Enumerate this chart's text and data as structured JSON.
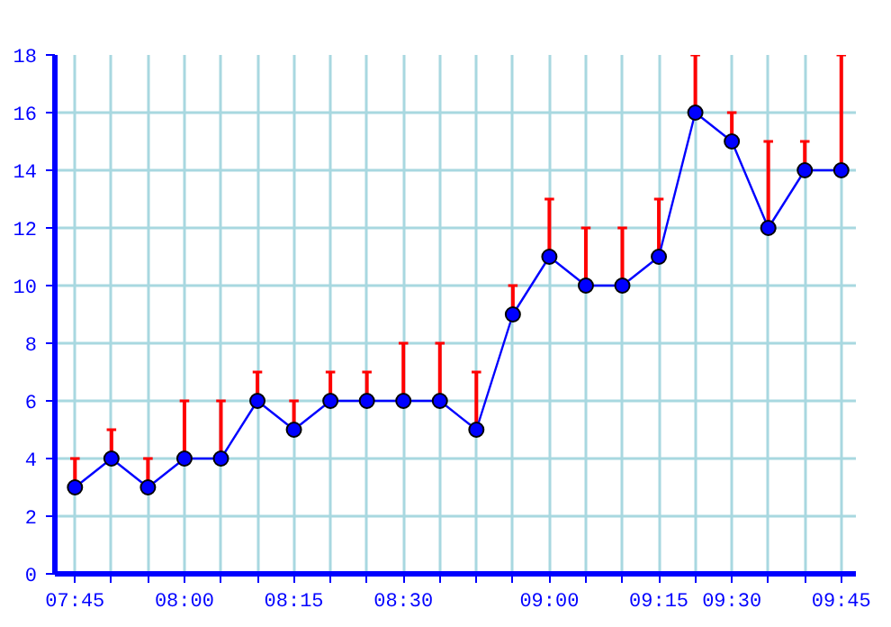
{
  "chart_data": {
    "type": "line",
    "categories": [
      "07:45",
      null,
      null,
      "08:00",
      null,
      null,
      "08:15",
      null,
      null,
      "08:30",
      null,
      null,
      null,
      "09:00",
      null,
      null,
      "09:15",
      null,
      "09:30",
      null,
      null,
      "09:45"
    ],
    "series": [
      {
        "color": "#0000ff",
        "values": [
          3,
          4,
          3,
          4,
          4,
          6,
          5,
          6,
          6,
          6,
          6,
          5,
          9,
          11,
          10,
          10,
          11,
          16,
          15,
          12,
          14,
          14
        ],
        "errors": [
          [
            3,
            4
          ],
          [
            4,
            5
          ],
          [
            3,
            4
          ],
          [
            4,
            6
          ],
          [
            4,
            6
          ],
          [
            6,
            7
          ],
          [
            5,
            6
          ],
          [
            6,
            7
          ],
          [
            6,
            7
          ],
          [
            6,
            8
          ],
          [
            6,
            8
          ],
          [
            5,
            7
          ],
          [
            9,
            10
          ],
          [
            11,
            13
          ],
          [
            10,
            12
          ],
          [
            10,
            12
          ],
          [
            11,
            13
          ],
          [
            16,
            18
          ],
          [
            15,
            16
          ],
          [
            12,
            15
          ],
          [
            14,
            15
          ],
          [
            14,
            18
          ]
        ]
      }
    ],
    "ylim": [
      0,
      18
    ],
    "yticks": [
      0,
      2,
      4,
      6,
      8,
      10,
      12,
      14,
      16,
      18
    ],
    "grid": true,
    "marker": "circle",
    "line_style": "solid"
  }
}
